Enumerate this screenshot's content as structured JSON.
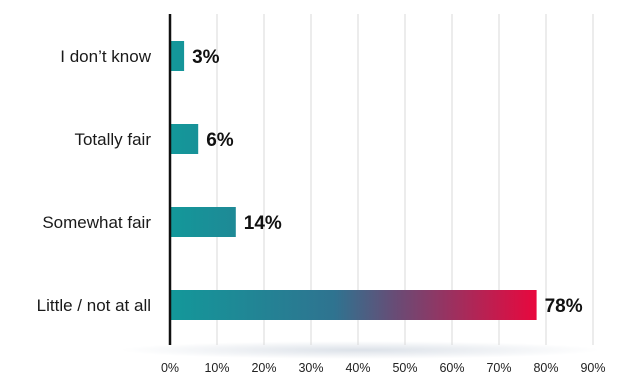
{
  "chart_data": {
    "type": "bar",
    "orientation": "horizontal",
    "categories": [
      "I don’t know",
      "Totally fair",
      "Somewhat fair",
      "Little / not at all"
    ],
    "values": [
      3,
      6,
      14,
      78
    ],
    "value_labels": [
      "3%",
      "6%",
      "14%",
      "78%"
    ],
    "xlim": [
      0,
      90
    ],
    "ticks": [
      0,
      10,
      20,
      30,
      40,
      50,
      60,
      70,
      80,
      90
    ],
    "tick_labels": [
      "0%",
      "10%",
      "20%",
      "30%",
      "40%",
      "50%",
      "60%",
      "70%",
      "80%",
      "90%"
    ],
    "grid": "vertical",
    "legend": "none",
    "title": "",
    "xlabel": "",
    "ylabel": "",
    "colors": {
      "bar_start": "#13989a",
      "bar_end": "#e8083e",
      "axis": "#111111",
      "grid": "#d9d9d9"
    }
  }
}
